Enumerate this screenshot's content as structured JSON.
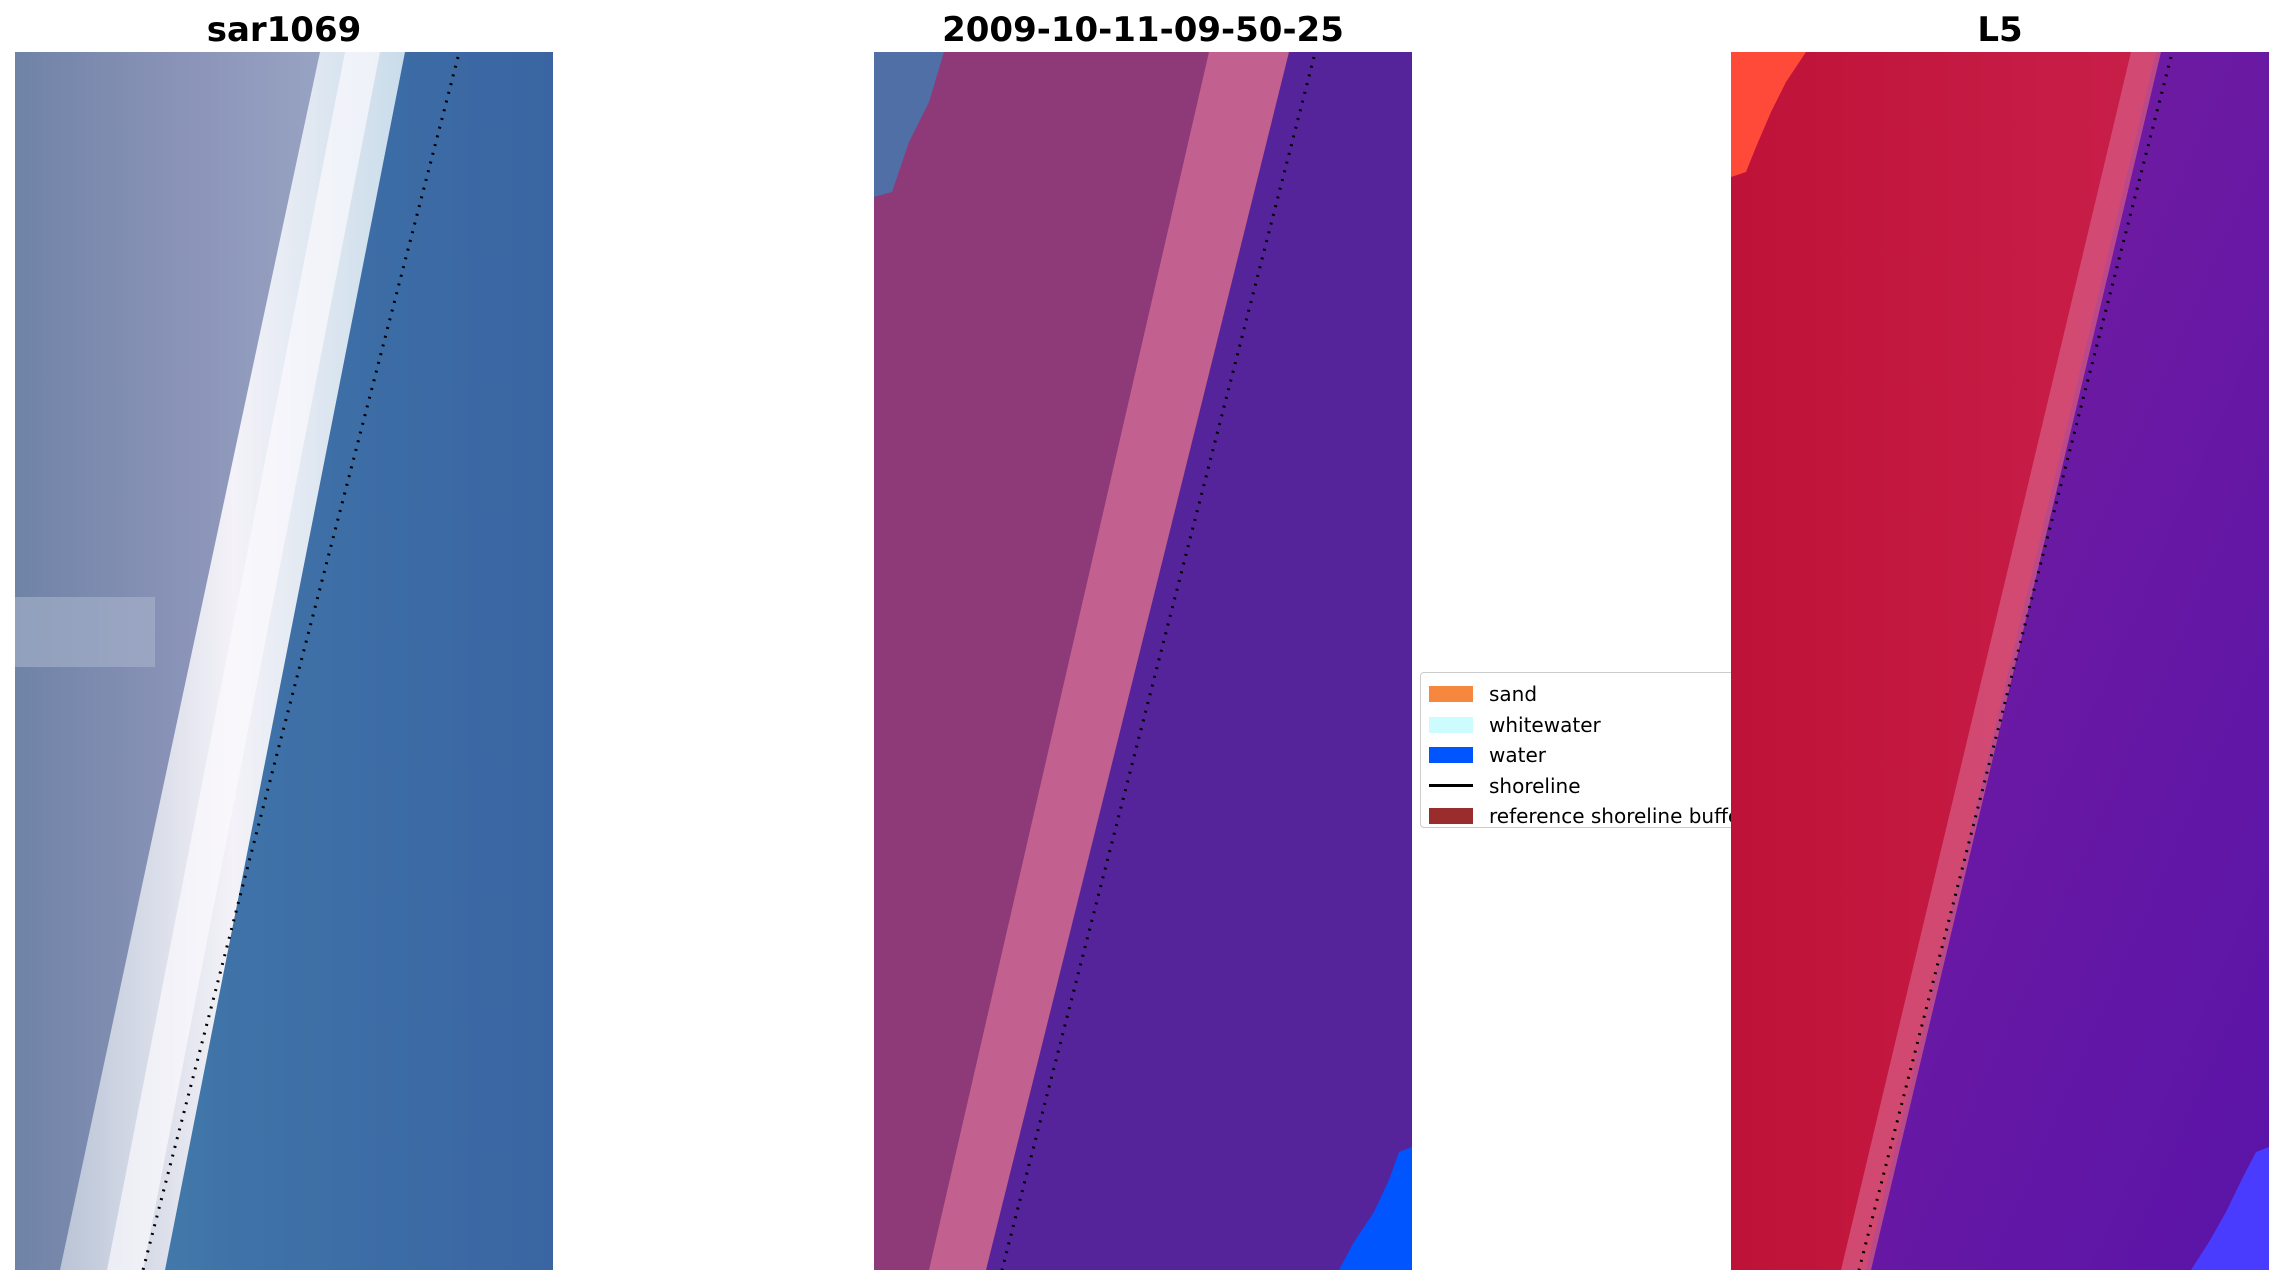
{
  "panels": [
    {
      "title": "sar1069"
    },
    {
      "title": "2009-10-11-09-50-25"
    },
    {
      "title": "L5"
    }
  ],
  "legend": {
    "items": [
      {
        "label": "sand",
        "color": "#f5873f",
        "kind": "patch"
      },
      {
        "label": "whitewater",
        "color": "#ccfcfd",
        "kind": "patch"
      },
      {
        "label": "water",
        "color": "#0055ff",
        "kind": "patch"
      },
      {
        "label": "shoreline",
        "color": "#000000",
        "kind": "line"
      },
      {
        "label": "reference shoreline buffer",
        "color": "#992c2c",
        "kind": "patch"
      }
    ]
  },
  "colors": {
    "rgb_water": "#3b6aa6",
    "rgb_sand": "#7f86b0",
    "rgb_whitewater": "#f2f0f7",
    "classified_land": "#8e3a78",
    "classified_buffer": "#c2618f",
    "classified_water": "#55249a",
    "classified_sea": "#0055ff",
    "index_land": "#c0143b",
    "index_water": "#6a1aa8",
    "index_edge": "#ff4a3a",
    "shoreline": "#000000"
  }
}
